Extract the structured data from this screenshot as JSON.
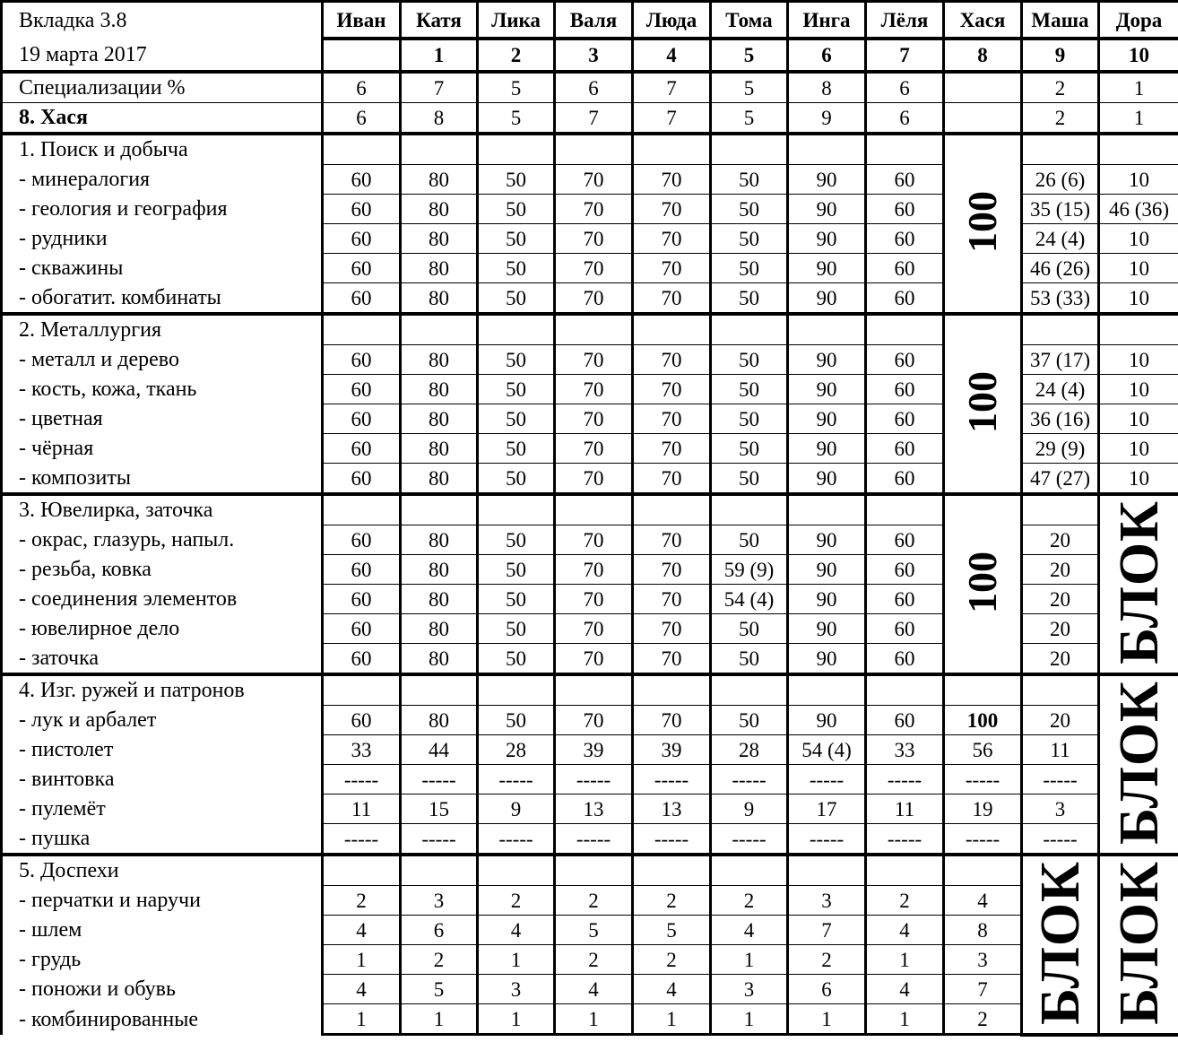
{
  "header": {
    "title": "Вкладка 3.8",
    "date": "19 марта 2017",
    "names": [
      "Иван",
      "Катя",
      "Лика",
      "Валя",
      "Люда",
      "Тома",
      "Инга",
      "Лёля",
      "Хася",
      "Маша",
      "Дора"
    ],
    "numbers": [
      "",
      "1",
      "2",
      "3",
      "4",
      "5",
      "6",
      "7",
      "8",
      "9",
      "10"
    ]
  },
  "spec": {
    "label": "Специализации %",
    "values": [
      "6",
      "7",
      "5",
      "6",
      "7",
      "5",
      "8",
      "6",
      "",
      "2",
      "1"
    ]
  },
  "hasya": {
    "label": "8. Хася",
    "values": [
      "6",
      "8",
      "5",
      "7",
      "7",
      "5",
      "9",
      "6",
      "",
      "2",
      "1"
    ]
  },
  "sections": [
    {
      "title": "1. Поиск и добыча",
      "merged": [
        {
          "col": 8,
          "text": "100"
        }
      ],
      "items": [
        {
          "label": "- минералогия",
          "values": [
            "60",
            "80",
            "50",
            "70",
            "70",
            "50",
            "90",
            "60",
            null,
            "26 (6)",
            "10"
          ]
        },
        {
          "label": "- геология и география",
          "values": [
            "60",
            "80",
            "50",
            "70",
            "70",
            "50",
            "90",
            "60",
            null,
            "35 (15)",
            "46 (36)"
          ]
        },
        {
          "label": "- рудники",
          "values": [
            "60",
            "80",
            "50",
            "70",
            "70",
            "50",
            "90",
            "60",
            null,
            "24 (4)",
            "10"
          ]
        },
        {
          "label": "- скважины",
          "values": [
            "60",
            "80",
            "50",
            "70",
            "70",
            "50",
            "90",
            "60",
            null,
            "46 (26)",
            "10"
          ]
        },
        {
          "label": "- обогатит. комбинаты",
          "values": [
            "60",
            "80",
            "50",
            "70",
            "70",
            "50",
            "90",
            "60",
            null,
            "53 (33)",
            "10"
          ]
        }
      ]
    },
    {
      "title": "2. Металлургия",
      "merged": [
        {
          "col": 8,
          "text": "100"
        }
      ],
      "items": [
        {
          "label": "- металл и дерево",
          "values": [
            "60",
            "80",
            "50",
            "70",
            "70",
            "50",
            "90",
            "60",
            null,
            "37 (17)",
            "10"
          ]
        },
        {
          "label": "- кость, кожа, ткань",
          "values": [
            "60",
            "80",
            "50",
            "70",
            "70",
            "50",
            "90",
            "60",
            null,
            "24 (4)",
            "10"
          ]
        },
        {
          "label": "- цветная",
          "values": [
            "60",
            "80",
            "50",
            "70",
            "70",
            "50",
            "90",
            "60",
            null,
            "36 (16)",
            "10"
          ]
        },
        {
          "label": "- чёрная",
          "values": [
            "60",
            "80",
            "50",
            "70",
            "70",
            "50",
            "90",
            "60",
            null,
            "29 (9)",
            "10"
          ]
        },
        {
          "label": "- композиты",
          "values": [
            "60",
            "80",
            "50",
            "70",
            "70",
            "50",
            "90",
            "60",
            null,
            "47 (27)",
            "10"
          ]
        }
      ]
    },
    {
      "title": "3. Ювелирка, заточка",
      "merged": [
        {
          "col": 8,
          "text": "100"
        },
        {
          "col": 10,
          "text": "БЛОК"
        }
      ],
      "items": [
        {
          "label": "- окрас, глазурь, напыл.",
          "values": [
            "60",
            "80",
            "50",
            "70",
            "70",
            "50",
            "90",
            "60",
            null,
            "20",
            null
          ]
        },
        {
          "label": "- резьба, ковка",
          "values": [
            "60",
            "80",
            "50",
            "70",
            "70",
            "59 (9)",
            "90",
            "60",
            null,
            "20",
            null
          ]
        },
        {
          "label": "- соединения элементов",
          "values": [
            "60",
            "80",
            "50",
            "70",
            "70",
            "54 (4)",
            "90",
            "60",
            null,
            "20",
            null
          ]
        },
        {
          "label": "- ювелирное дело",
          "values": [
            "60",
            "80",
            "50",
            "70",
            "70",
            "50",
            "90",
            "60",
            null,
            "20",
            null
          ]
        },
        {
          "label": "- заточка",
          "values": [
            "60",
            "80",
            "50",
            "70",
            "70",
            "50",
            "90",
            "60",
            null,
            "20",
            null
          ]
        }
      ]
    },
    {
      "title": "4. Изг. ружей и патронов",
      "merged": [
        {
          "col": 10,
          "text": "БЛОК"
        }
      ],
      "items": [
        {
          "label": "- лук и арбалет",
          "values": [
            "60",
            "80",
            "50",
            "70",
            "70",
            "50",
            "90",
            "60",
            "100",
            "20",
            null
          ],
          "bold": [
            8
          ]
        },
        {
          "label": "- пистолет",
          "values": [
            "33",
            "44",
            "28",
            "39",
            "39",
            "28",
            "54 (4)",
            "33",
            "56",
            "11",
            null
          ]
        },
        {
          "label": "- винтовка",
          "values": [
            "-----",
            "-----",
            "-----",
            "-----",
            "-----",
            "-----",
            "-----",
            "-----",
            "-----",
            "-----",
            null
          ]
        },
        {
          "label": "- пулемёт",
          "values": [
            "11",
            "15",
            "9",
            "13",
            "13",
            "9",
            "17",
            "11",
            "19",
            "3",
            null
          ]
        },
        {
          "label": "- пушка",
          "values": [
            "-----",
            "-----",
            "-----",
            "-----",
            "-----",
            "-----",
            "-----",
            "-----",
            "-----",
            "-----",
            null
          ]
        }
      ]
    },
    {
      "title": "5. Доспехи",
      "merged": [
        {
          "col": 9,
          "text": "БЛОК"
        },
        {
          "col": 10,
          "text": "БЛОК"
        }
      ],
      "items": [
        {
          "label": "- перчатки и наручи",
          "values": [
            "2",
            "3",
            "2",
            "2",
            "2",
            "2",
            "3",
            "2",
            "4",
            null,
            null
          ]
        },
        {
          "label": "- шлем",
          "values": [
            "4",
            "6",
            "4",
            "5",
            "5",
            "4",
            "7",
            "4",
            "8",
            null,
            null
          ]
        },
        {
          "label": "- грудь",
          "values": [
            "1",
            "2",
            "1",
            "2",
            "2",
            "1",
            "2",
            "1",
            "3",
            null,
            null
          ]
        },
        {
          "label": "- поножи и обувь",
          "values": [
            "4",
            "5",
            "3",
            "4",
            "4",
            "3",
            "6",
            "4",
            "7",
            null,
            null
          ]
        },
        {
          "label": "- комбинированные",
          "values": [
            "1",
            "1",
            "1",
            "1",
            "1",
            "1",
            "1",
            "1",
            "2",
            null,
            null
          ]
        }
      ]
    }
  ]
}
